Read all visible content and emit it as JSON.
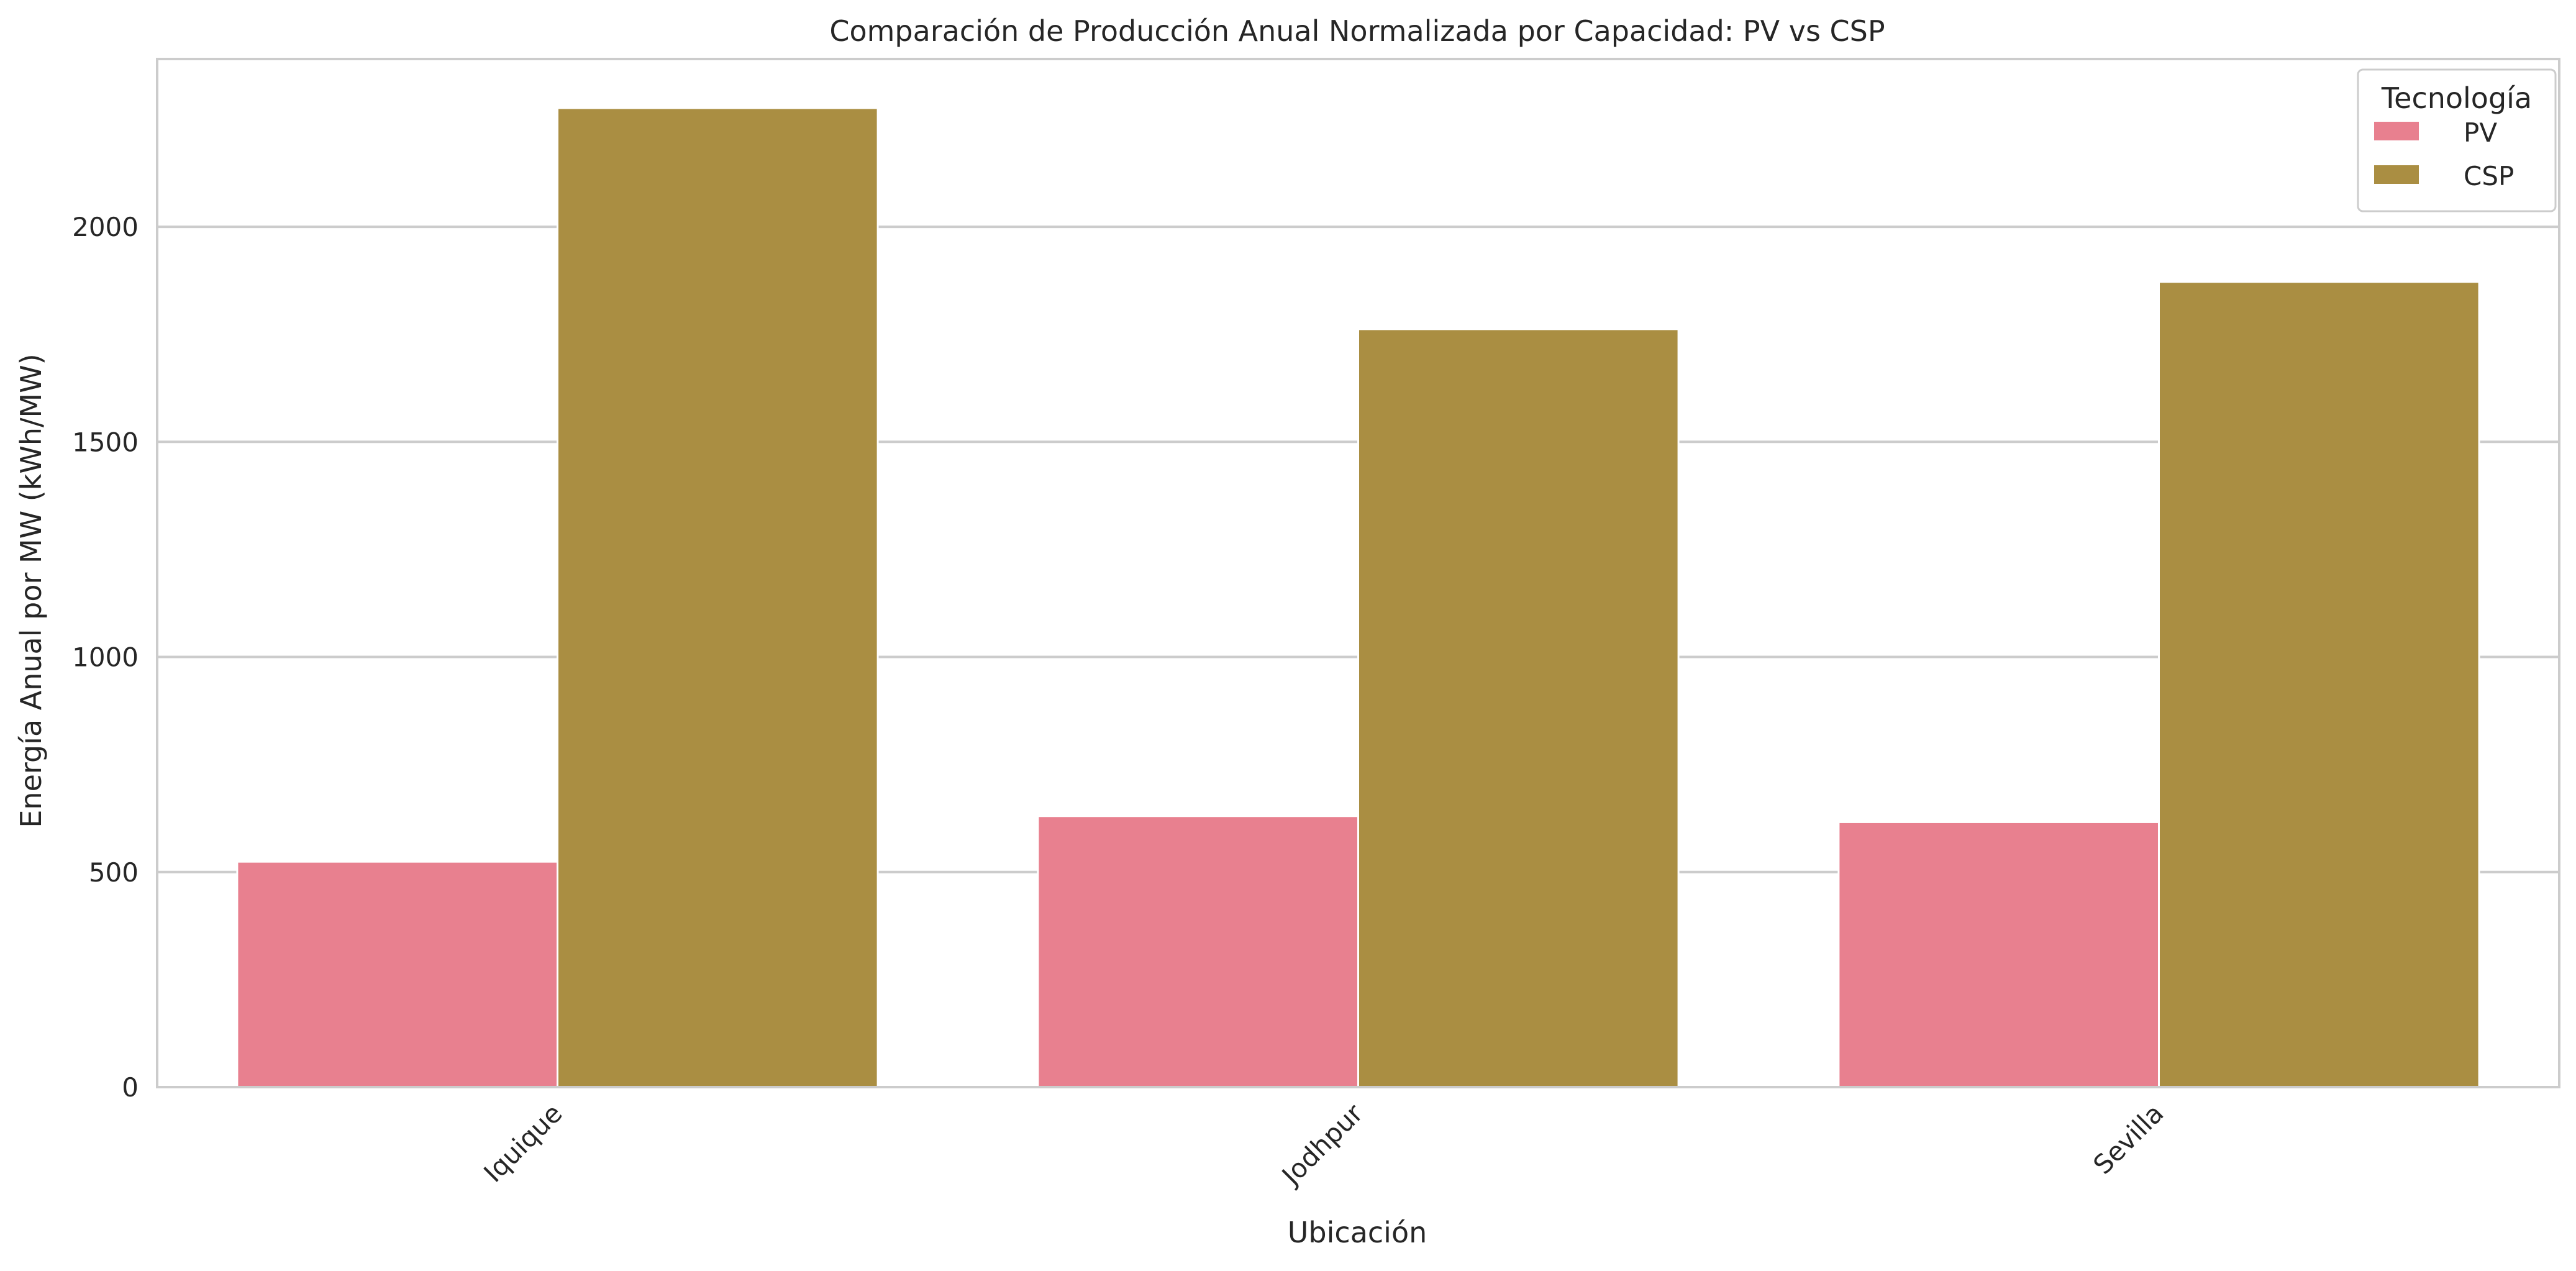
{
  "chart_data": {
    "type": "bar",
    "title": "Comparación de Producción Anual Normalizada por Capacidad: PV vs CSP",
    "xlabel": "Ubicación",
    "ylabel": "Energía Anual por MW (kWh/MW)",
    "categories": [
      "Iquique",
      "Jodhpur",
      "Sevilla"
    ],
    "series": [
      {
        "name": "PV",
        "color": "#e8808f",
        "values": [
          524,
          630,
          616
        ]
      },
      {
        "name": "CSP",
        "color": "#aa8e42",
        "values": [
          2276,
          1762,
          1872
        ]
      }
    ],
    "ylim": [
      0,
      2390
    ],
    "yticks": [
      0,
      500,
      1000,
      1500,
      2000
    ],
    "grid": "horizontal",
    "legend": {
      "title": "Tecnología",
      "placement": "top-right"
    },
    "xtick_rotation": -45
  }
}
